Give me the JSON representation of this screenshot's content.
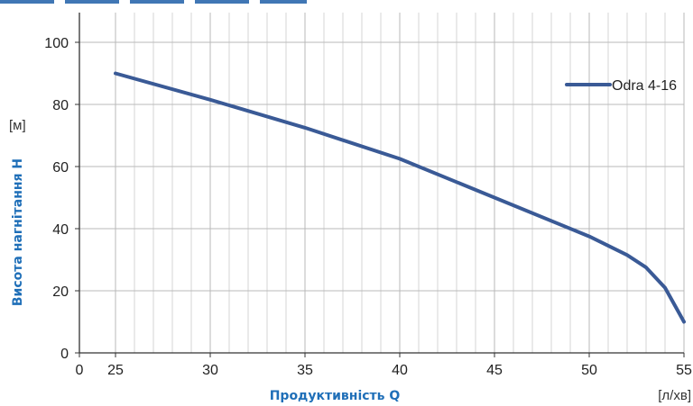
{
  "chart_data": {
    "type": "line",
    "xlabel": "Продуктивність Q",
    "ylabel": "Висота нагнітання H",
    "x_unit": "[л/хв]",
    "y_unit": "[м]",
    "xlim": [
      0,
      55
    ],
    "ylim": [
      0,
      100
    ],
    "x_ticks": [
      0,
      25,
      30,
      35,
      40,
      45,
      50,
      55
    ],
    "y_ticks": [
      0,
      20,
      40,
      60,
      80,
      100
    ],
    "legend": "top-right",
    "grid": true,
    "series": [
      {
        "name": "Odra 4-16",
        "color": "#3a5a96",
        "x": [
          25,
          30,
          35,
          40,
          45,
          50,
          52,
          53,
          54,
          55
        ],
        "y": [
          90,
          81.5,
          72.5,
          62.5,
          50,
          37.5,
          31.5,
          27.5,
          21,
          10
        ]
      }
    ]
  }
}
